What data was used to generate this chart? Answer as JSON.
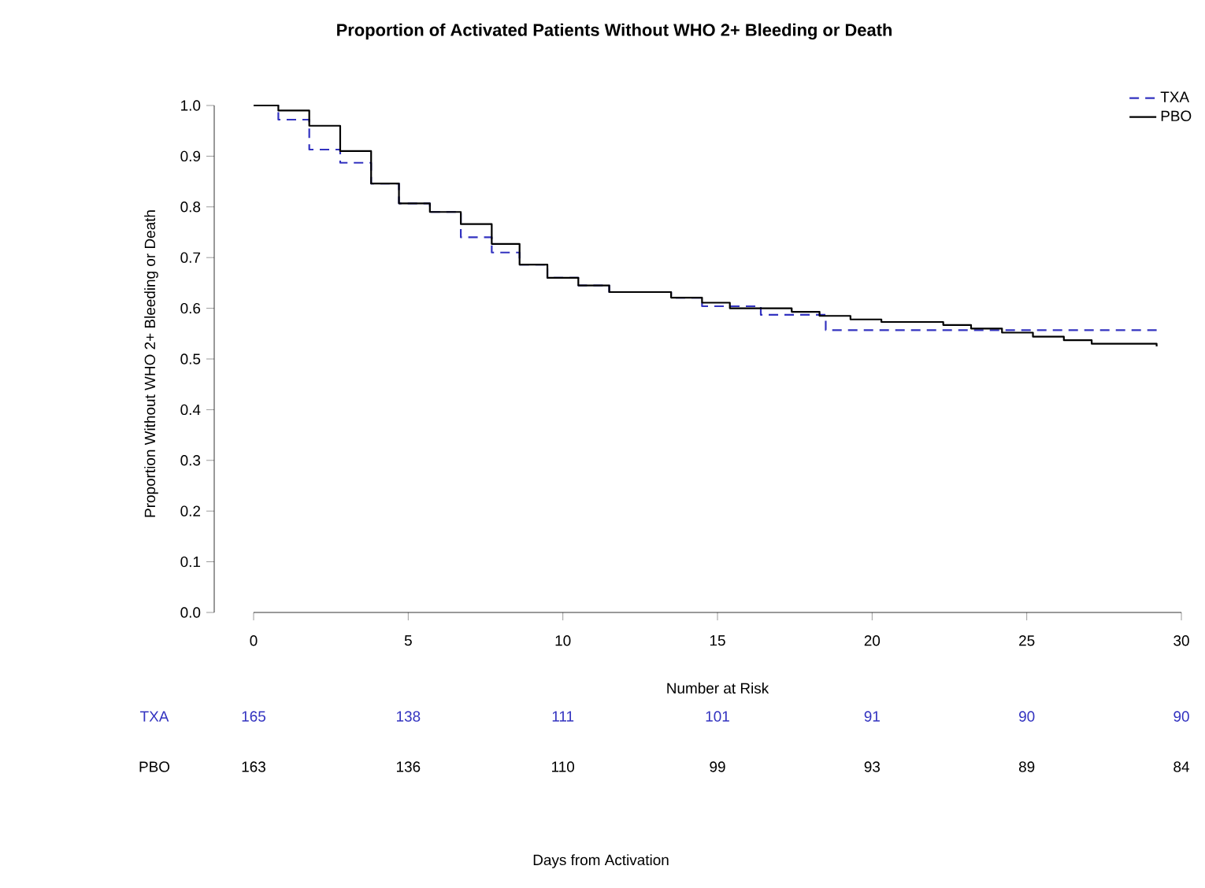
{
  "chart_data": {
    "type": "step",
    "title": "Proportion of Activated Patients Without WHO 2+ Bleeding or Death",
    "ylabel": "Proportion Without WHO 2+ Bleeding or Death",
    "xlim": [
      0,
      30
    ],
    "xticks": [
      0,
      5,
      10,
      15,
      20,
      25,
      30
    ],
    "ylim": [
      0,
      1
    ],
    "yticks": [
      {
        "value": 0,
        "label": "0.0"
      },
      0.1,
      0.2,
      0.3,
      0.4,
      0.5,
      0.6,
      0.7,
      0.8,
      0.9,
      {
        "value": 1,
        "label": "1.0"
      }
    ],
    "legend": "top right",
    "marker": "none",
    "series": [
      {
        "name": "TXA",
        "color": "#3333c0",
        "line_style": "dashed",
        "x": [
          0,
          0.8,
          1.8,
          2.8,
          3.8,
          4.7,
          5.7,
          6.7,
          7.7,
          8.6,
          9.5,
          10.5,
          11.5,
          13.5,
          14.5,
          16.4,
          18.5,
          29.2
        ],
        "values": [
          1.0,
          0.972,
          0.913,
          0.887,
          0.846,
          0.807,
          0.79,
          0.74,
          0.71,
          0.686,
          0.66,
          0.645,
          0.632,
          0.621,
          0.604,
          0.587,
          0.557,
          0.557
        ]
      },
      {
        "name": "PBO",
        "color": "#000000",
        "line_style": "solid",
        "x": [
          0,
          0.8,
          1.8,
          2.8,
          3.8,
          4.7,
          5.7,
          6.7,
          7.7,
          8.6,
          9.5,
          10.5,
          11.5,
          13.5,
          14.5,
          15.4,
          17.4,
          18.3,
          19.3,
          20.3,
          22.3,
          23.2,
          24.2,
          25.2,
          26.2,
          27.1,
          29.2
        ],
        "values": [
          1.0,
          0.99,
          0.96,
          0.91,
          0.846,
          0.807,
          0.79,
          0.766,
          0.727,
          0.686,
          0.66,
          0.645,
          0.632,
          0.621,
          0.611,
          0.6,
          0.593,
          0.585,
          0.578,
          0.573,
          0.567,
          0.56,
          0.552,
          0.544,
          0.537,
          0.53,
          0.525
        ]
      }
    ],
    "annotations": [
      "Number at Risk",
      "TXA",
      "165",
      "138",
      "111",
      "101",
      "91",
      "90",
      "90",
      "PBO",
      "163",
      "136",
      "110",
      "99",
      "93",
      "89",
      "84",
      "Days from Activation"
    ]
  }
}
